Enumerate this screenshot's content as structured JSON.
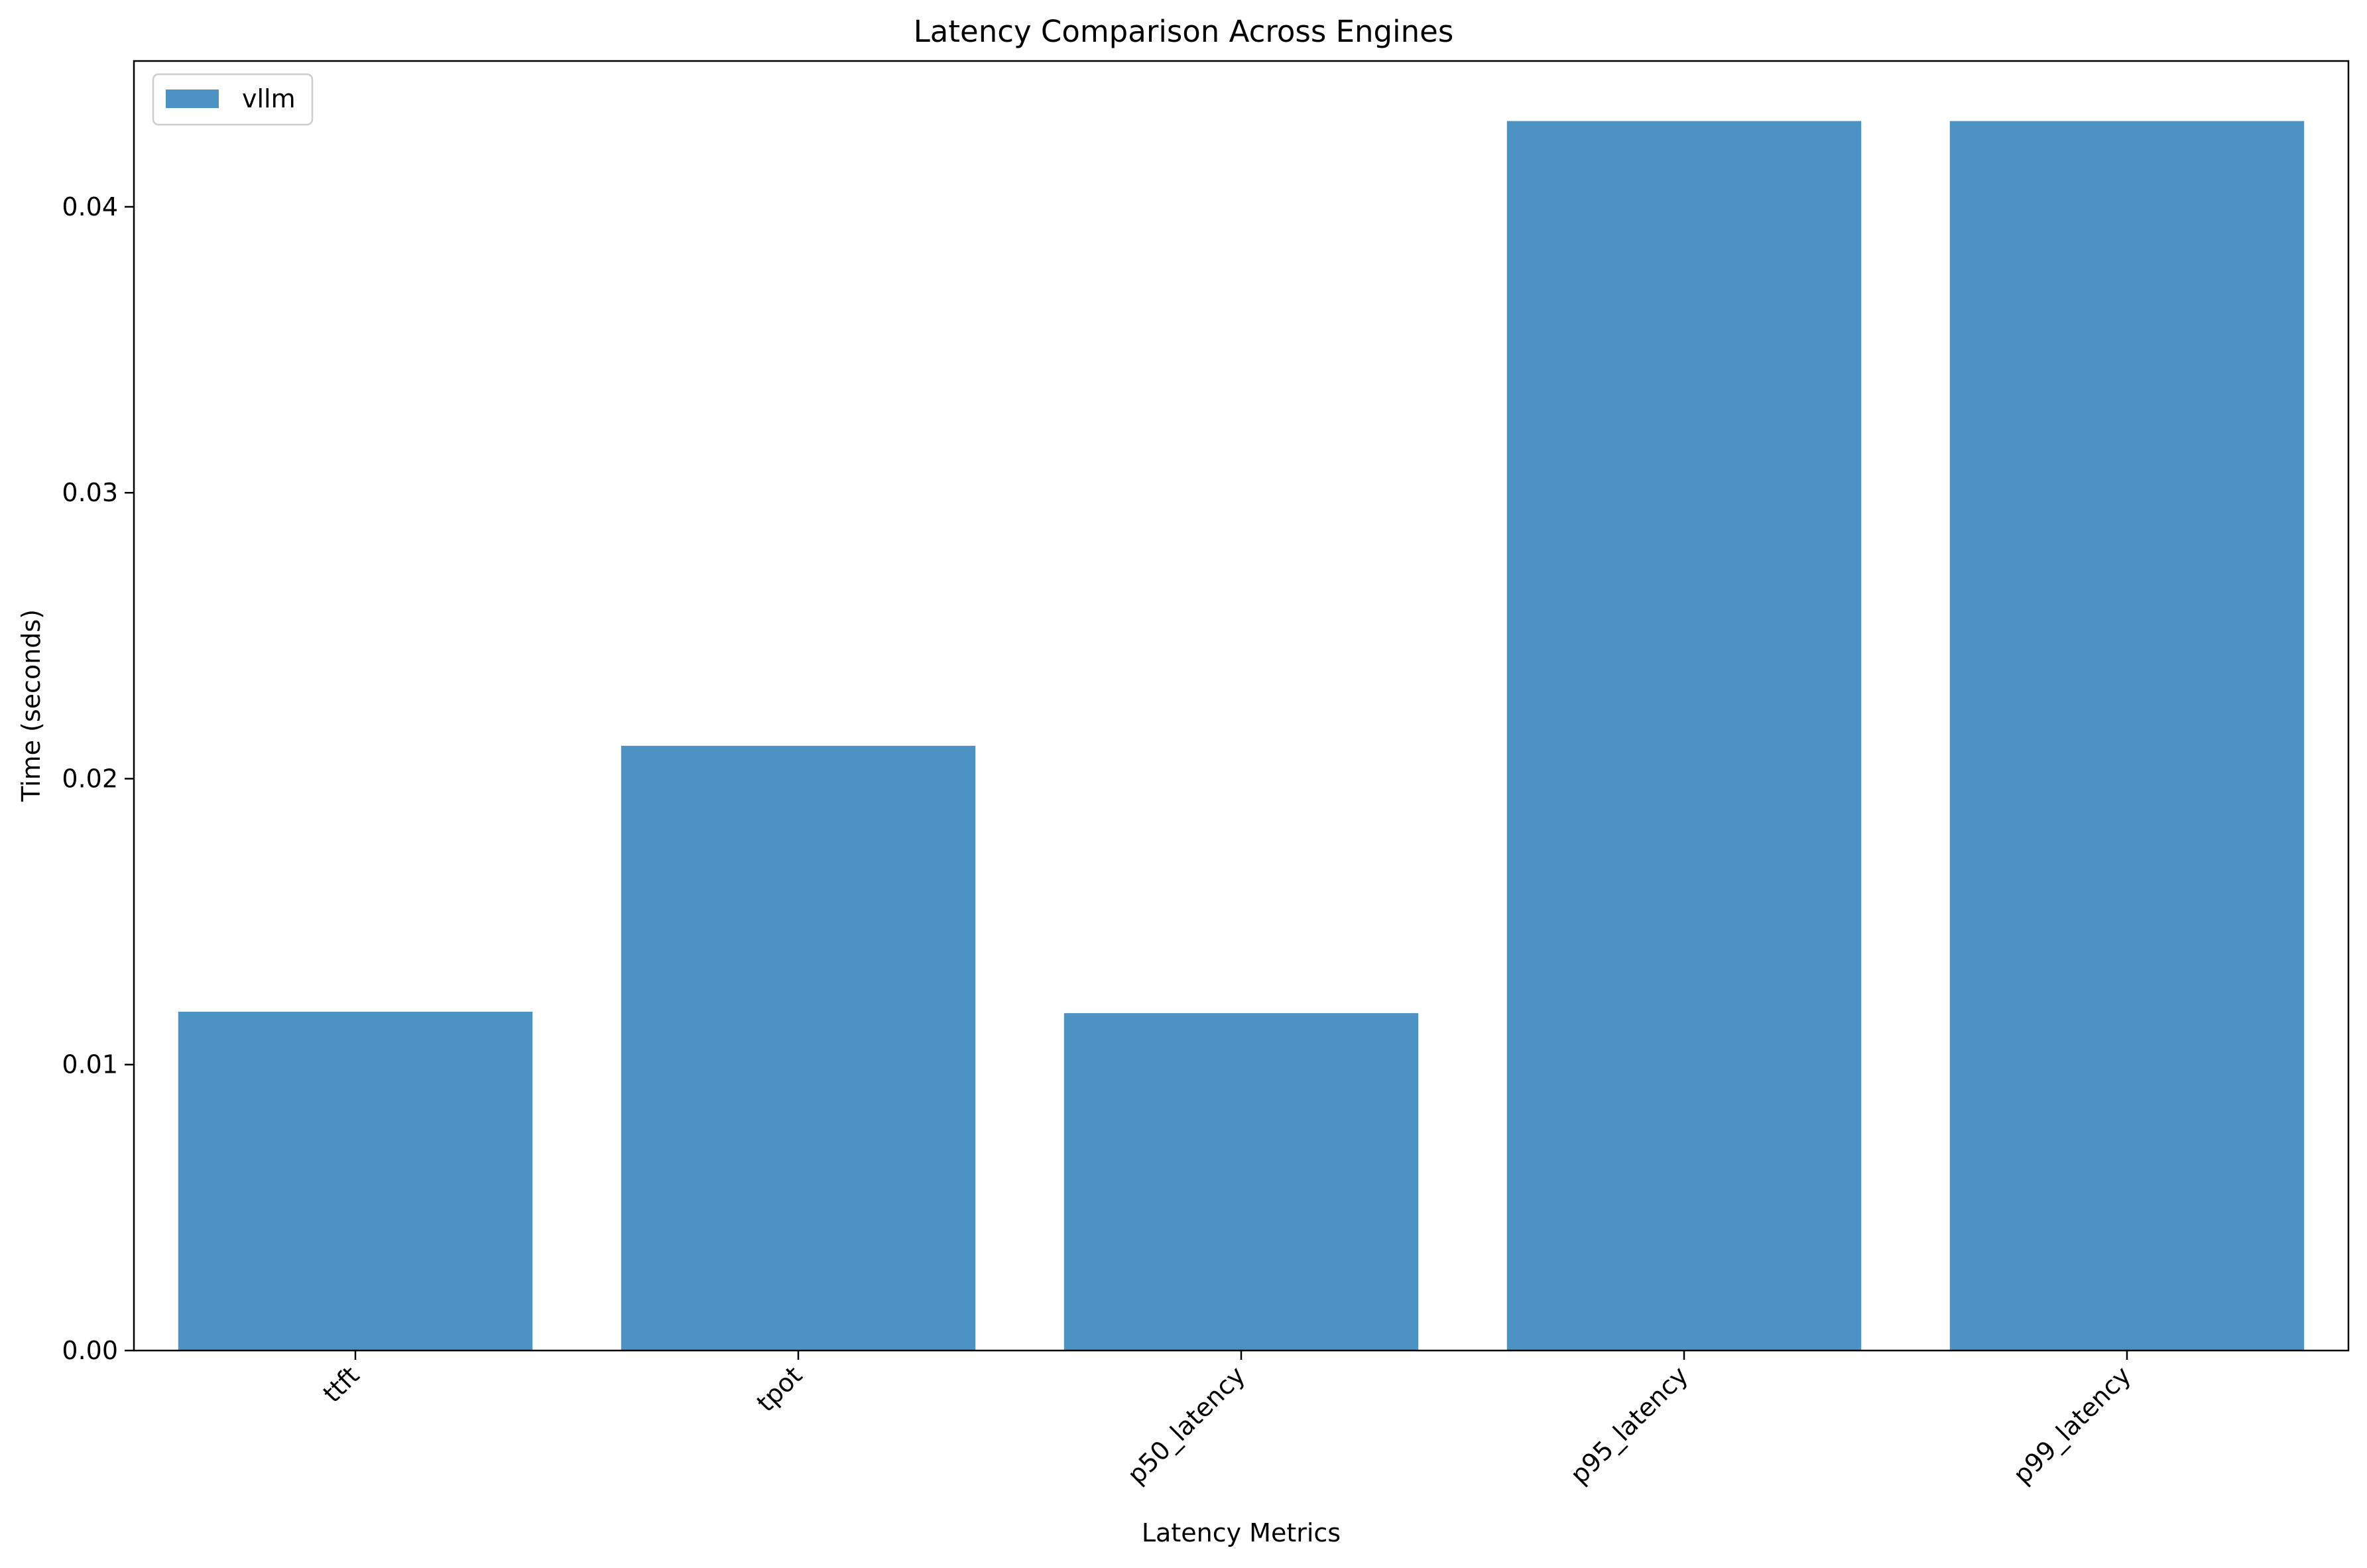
{
  "chart_data": {
    "type": "bar",
    "title": "Latency Comparison Across Engines",
    "xlabel": "Latency Metrics",
    "ylabel": "Time (seconds)",
    "categories": [
      "ttft",
      "tpot",
      "p50_latency",
      "p95_latency",
      "p99_latency"
    ],
    "series": [
      {
        "name": "vllm",
        "values": [
          0.01185,
          0.02115,
          0.0118,
          0.043,
          0.043
        ],
        "color": "#4c92c3"
      }
    ],
    "ylim": [
      0,
      0.0451
    ],
    "yticks": [
      0.0,
      0.01,
      0.02,
      0.03,
      0.04
    ],
    "ytick_labels": [
      "0.00",
      "0.01",
      "0.02",
      "0.03",
      "0.04"
    ],
    "grid": false,
    "legend": {
      "position": "top-left"
    }
  }
}
